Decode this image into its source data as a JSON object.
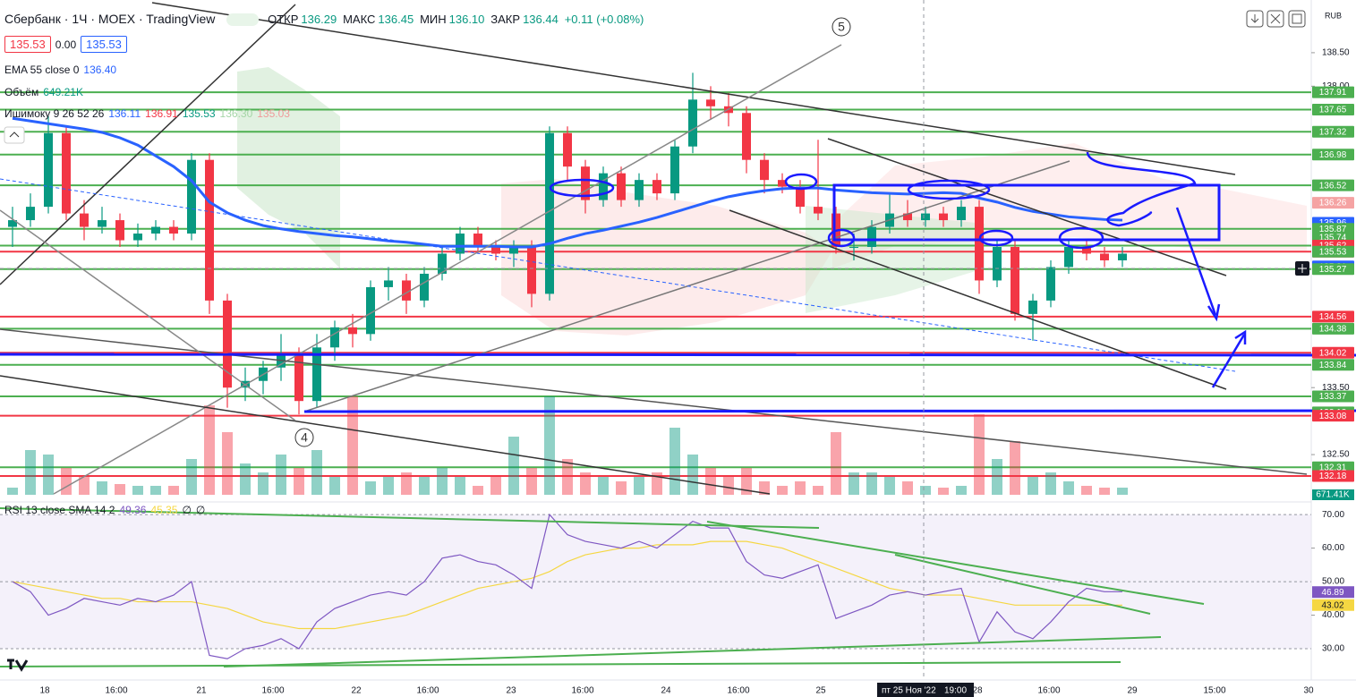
{
  "toolbar": {
    "symbol": "Сбербанк · 1Ч · MOEX · TradingView",
    "open_label": "ОТКР",
    "open": "136.29",
    "high_label": "МАКС",
    "high": "136.45",
    "low_label": "МИН",
    "low": "136.10",
    "close_label": "ЗАКР",
    "close": "136.44",
    "change": "+0.11 (+0.08%)",
    "currency": "RUB"
  },
  "order_boxes": [
    "135.53",
    "0.00",
    "135.53"
  ],
  "legend": {
    "ema_name": "EMA 55 close 0",
    "ema_value": "136.40",
    "volume_name": "Объём",
    "volume_value": "649.21K",
    "ichimoku_name": "Ишимоку 9 26 52 26",
    "ichimoku_values": [
      "136.11",
      "136.91",
      "135.53",
      "136.30",
      "135.03"
    ],
    "rsi_name": "RSI 13 close SMA 14 2",
    "rsi_values": [
      "49.36",
      "45.35",
      "∅",
      "∅"
    ]
  },
  "annotations": [
    "5",
    "4"
  ],
  "crosshair": {
    "date": "пт 25 Ноя '22",
    "time": "19:00"
  },
  "chart_data": {
    "type": "candlestick",
    "up_color": "#089981",
    "down_color": "#f23645",
    "ema_color": "#2962ff",
    "ylim": [
      131.9,
      139.18
    ],
    "yticks": [
      {
        "value": 138.5,
        "label": "138.50"
      },
      {
        "value": 138,
        "label": "138.00"
      },
      {
        "value": 133.5,
        "label": "133.50"
      },
      {
        "value": 132.5,
        "label": "132.50"
      }
    ],
    "x_labels": [
      "18",
      "16:00",
      "21",
      "16:00",
      "22",
      "16:00",
      "23",
      "16:00",
      "24",
      "16:00",
      "25",
      "28",
      "16:00",
      "29",
      "15:00",
      "30"
    ],
    "candles": [
      [
        135.9,
        136.2,
        135.6,
        136.0
      ],
      [
        136.0,
        136.4,
        135.9,
        136.2
      ],
      [
        136.2,
        137.55,
        136.1,
        137.3
      ],
      [
        137.3,
        137.4,
        136.0,
        136.1
      ],
      [
        136.1,
        136.3,
        135.7,
        135.9
      ],
      [
        135.9,
        136.2,
        135.8,
        136.0
      ],
      [
        136.0,
        136.1,
        135.6,
        135.7
      ],
      [
        135.7,
        135.95,
        135.6,
        135.8
      ],
      [
        135.8,
        136.0,
        135.7,
        135.9
      ],
      [
        135.9,
        136.0,
        135.7,
        135.8
      ],
      [
        135.8,
        137.0,
        135.7,
        136.9
      ],
      [
        136.9,
        137.0,
        134.6,
        134.8
      ],
      [
        134.8,
        134.9,
        133.2,
        133.5
      ],
      [
        133.5,
        133.8,
        133.3,
        133.6
      ],
      [
        133.6,
        133.9,
        133.4,
        133.8
      ],
      [
        133.8,
        134.3,
        133.6,
        134.0
      ],
      [
        134.0,
        134.1,
        133.1,
        133.3
      ],
      [
        133.3,
        134.3,
        133.2,
        134.1
      ],
      [
        134.1,
        134.5,
        133.9,
        134.4
      ],
      [
        134.4,
        134.6,
        134.1,
        134.3
      ],
      [
        134.3,
        135.1,
        134.2,
        135.0
      ],
      [
        135.0,
        135.3,
        134.8,
        135.1
      ],
      [
        135.1,
        135.2,
        134.6,
        134.8
      ],
      [
        134.8,
        135.3,
        134.7,
        135.2
      ],
      [
        135.2,
        135.6,
        135.1,
        135.5
      ],
      [
        135.5,
        135.9,
        135.4,
        135.8
      ],
      [
        135.8,
        135.9,
        135.5,
        135.6
      ],
      [
        135.6,
        135.7,
        135.4,
        135.5
      ],
      [
        135.5,
        135.7,
        135.3,
        135.6
      ],
      [
        135.6,
        135.7,
        134.7,
        134.9
      ],
      [
        134.9,
        137.4,
        134.8,
        137.3
      ],
      [
        137.3,
        137.4,
        136.6,
        136.8
      ],
      [
        136.8,
        136.9,
        136.1,
        136.3
      ],
      [
        136.3,
        136.8,
        136.2,
        136.7
      ],
      [
        136.7,
        136.8,
        136.2,
        136.3
      ],
      [
        136.3,
        136.7,
        136.2,
        136.6
      ],
      [
        136.6,
        136.7,
        136.3,
        136.4
      ],
      [
        136.4,
        137.2,
        136.3,
        137.1
      ],
      [
        137.1,
        138.2,
        137.0,
        137.8
      ],
      [
        137.8,
        138.0,
        137.5,
        137.7
      ],
      [
        137.7,
        137.9,
        137.4,
        137.6
      ],
      [
        137.6,
        137.7,
        136.7,
        136.9
      ],
      [
        136.9,
        137.0,
        136.4,
        136.6
      ],
      [
        136.6,
        136.7,
        136.4,
        136.5
      ],
      [
        136.5,
        136.6,
        136.1,
        136.2
      ],
      [
        136.2,
        137.2,
        136.0,
        136.1
      ],
      [
        136.1,
        136.2,
        135.5,
        135.6
      ],
      [
        135.6,
        135.8,
        135.4,
        135.6
      ],
      [
        135.6,
        136.0,
        135.5,
        135.9
      ],
      [
        135.9,
        136.4,
        135.8,
        136.1
      ],
      [
        136.1,
        136.3,
        135.9,
        136.0
      ],
      [
        136.0,
        136.2,
        135.9,
        136.1
      ],
      [
        136.1,
        136.2,
        135.9,
        136.0
      ],
      [
        136.0,
        136.3,
        135.9,
        136.2
      ],
      [
        136.2,
        136.3,
        134.9,
        135.1
      ],
      [
        135.1,
        135.7,
        135.0,
        135.6
      ],
      [
        135.6,
        135.7,
        134.5,
        134.6
      ],
      [
        134.6,
        134.9,
        134.2,
        134.8
      ],
      [
        134.8,
        135.4,
        134.7,
        135.3
      ],
      [
        135.3,
        135.7,
        135.2,
        135.6
      ],
      [
        135.6,
        135.7,
        135.4,
        135.5
      ],
      [
        135.5,
        135.6,
        135.3,
        135.4
      ],
      [
        135.4,
        135.6,
        135.3,
        135.5
      ]
    ],
    "volume": [
      104,
      650,
      585,
      390,
      260,
      195,
      156,
      130,
      130,
      130,
      520,
      1300,
      910,
      455,
      325,
      585,
      390,
      650,
      260,
      1430,
      195,
      260,
      325,
      260,
      390,
      260,
      130,
      260,
      845,
      390,
      1430,
      520,
      325,
      260,
      195,
      260,
      325,
      975,
      585,
      390,
      260,
      390,
      195,
      130,
      195,
      130,
      910,
      325,
      325,
      260,
      195,
      130,
      104,
      130,
      1170,
      520,
      780,
      260,
      325,
      195,
      130,
      104,
      104
    ],
    "volume_label": "671.41K",
    "ema": [
      137.52,
      137.48,
      137.44,
      137.4,
      137.36,
      137.31,
      137.23,
      137.12,
      136.96,
      136.8,
      136.59,
      136.27,
      136.11,
      136.0,
      135.92,
      135.87,
      135.83,
      135.8,
      135.77,
      135.75,
      135.72,
      135.69,
      135.67,
      135.64,
      135.61,
      135.61,
      135.61,
      135.61,
      135.6,
      135.6,
      135.65,
      135.73,
      135.8,
      135.85,
      135.91,
      135.97,
      136.04,
      136.12,
      136.2,
      136.28,
      136.35,
      136.4,
      136.44,
      136.47,
      136.48,
      136.48,
      136.45,
      136.43,
      136.41,
      136.4,
      136.39,
      136.4,
      136.41,
      136.4,
      136.33,
      136.27,
      136.19,
      136.13,
      136.09,
      136.05,
      136.03,
      136.01,
      136.0
    ],
    "levels": [
      {
        "price": 137.91,
        "color": "#4caf50",
        "line": true
      },
      {
        "price": 137.65,
        "color": "#4caf50",
        "line": true
      },
      {
        "price": 137.32,
        "color": "#4caf50",
        "line": true
      },
      {
        "price": 136.98,
        "color": "#4caf50",
        "line": true
      },
      {
        "price": 136.52,
        "color": "#4caf50",
        "line": true
      },
      {
        "price": 136.26,
        "color": "#f5a3a3",
        "line": false
      },
      {
        "price": 135.96,
        "color": "#2962ff",
        "line": false
      },
      {
        "price": 135.87,
        "color": "#4caf50",
        "line": true
      },
      {
        "price": 135.74,
        "color": "#4caf50",
        "line": false
      },
      {
        "price": 135.62,
        "color": "#4caf50",
        "line": true
      },
      {
        "price": 135.62,
        "color": "#f23645",
        "line": false
      },
      {
        "price": 135.53,
        "color": "#f23645",
        "line": true
      },
      {
        "price": 135.53,
        "color": "#4caf50",
        "line": false
      },
      {
        "price": 135.29,
        "color": "#131722",
        "line": false
      },
      {
        "price": 135.31,
        "color": "#2962ff",
        "line": false
      },
      {
        "price": 135.27,
        "color": "#4caf50",
        "line": true
      },
      {
        "price": 134.56,
        "color": "#f23645",
        "line": true
      },
      {
        "price": 134.38,
        "color": "#4caf50",
        "line": true
      },
      {
        "price": 134.02,
        "color": "#f23645",
        "line": true
      },
      {
        "price": 133.84,
        "color": "#4caf50",
        "line": true
      },
      {
        "price": 133.37,
        "color": "#4caf50",
        "line": true
      },
      {
        "price": 133.13,
        "color": "#4caf50",
        "line": false
      },
      {
        "price": 133.08,
        "color": "#f23645",
        "line": true
      },
      {
        "price": 132.31,
        "color": "#4caf50",
        "line": true
      },
      {
        "price": 132.18,
        "color": "#f23645",
        "line": true
      }
    ],
    "rsi": {
      "color": "#7e57c2",
      "ma_color": "#f5d742",
      "ylim": [
        22,
        71.9
      ],
      "yticks": [
        {
          "value": 70,
          "label": "70.00"
        },
        {
          "value": 60,
          "label": "60.00"
        },
        {
          "value": 50,
          "label": "50.00"
        },
        {
          "value": 40,
          "label": "40.00"
        },
        {
          "value": 30,
          "label": "30.00"
        }
      ],
      "values": [
        50,
        47,
        40,
        42,
        45,
        44,
        43,
        45,
        44,
        46,
        50,
        28,
        27,
        30,
        31,
        33,
        30,
        38,
        42,
        44,
        46,
        47,
        46,
        50,
        57,
        58,
        56,
        55,
        52,
        48,
        70,
        64,
        62,
        61,
        60,
        62,
        60,
        64,
        68,
        66,
        66,
        56,
        52,
        51,
        53,
        55,
        39,
        41,
        43,
        46,
        47,
        46,
        47,
        48,
        32,
        41,
        35,
        33,
        38,
        44,
        48,
        47,
        47
      ],
      "ma": [
        50,
        49,
        48,
        47,
        46,
        45,
        45,
        44,
        44,
        44,
        44,
        43,
        42,
        40,
        38,
        37,
        36,
        36,
        36,
        37,
        38,
        39,
        40,
        42,
        44,
        46,
        48,
        49,
        50,
        51,
        53,
        56,
        58,
        59,
        60,
        60,
        61,
        61,
        61,
        62,
        62,
        62,
        61,
        60,
        58,
        56,
        54,
        52,
        50,
        48,
        47,
        46,
        46,
        46,
        45,
        44,
        43,
        43,
        43,
        43,
        43,
        43,
        43
      ],
      "last": 46.89,
      "ma_last": 43.02
    }
  }
}
